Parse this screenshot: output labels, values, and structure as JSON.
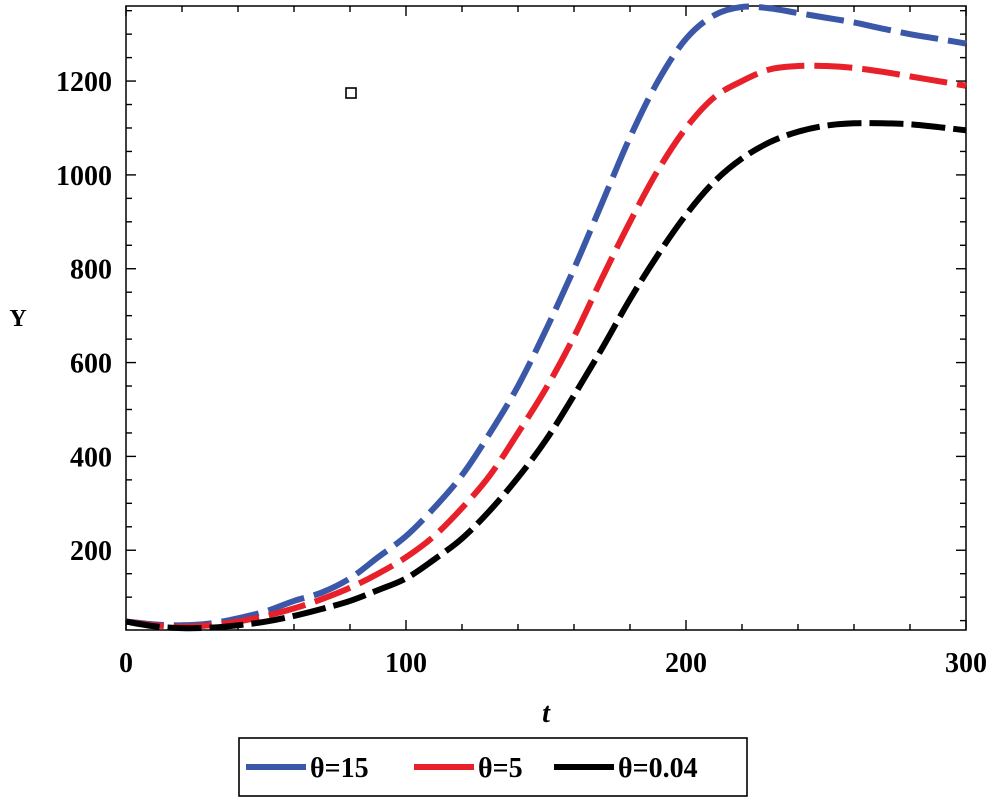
{
  "chart_data": {
    "type": "line",
    "title": "",
    "xlabel": "t",
    "ylabel": "Y",
    "xlim": [
      0,
      300
    ],
    "ylim": [
      30,
      1360
    ],
    "x_ticks": [
      0,
      100,
      200,
      300
    ],
    "y_ticks": [
      200,
      400,
      600,
      800,
      1000,
      1200
    ],
    "x_tick_labels": [
      "0",
      "100",
      "200",
      "300"
    ],
    "y_tick_labels": [
      "200",
      "400",
      "600",
      "800",
      "1000",
      "1200"
    ],
    "grid": false,
    "legend_position": "bottom",
    "series": [
      {
        "name": "θ=15",
        "color": "#3b57a8",
        "style": "dashed",
        "x": [
          0,
          10,
          20,
          30,
          40,
          50,
          60,
          70,
          80,
          90,
          100,
          110,
          120,
          130,
          140,
          150,
          160,
          170,
          180,
          190,
          200,
          210,
          220,
          230,
          240,
          250,
          260,
          270,
          280,
          290,
          300
        ],
        "y": [
          48,
          42,
          40,
          44,
          55,
          70,
          92,
          110,
          140,
          185,
          230,
          290,
          360,
          450,
          550,
          670,
          800,
          940,
          1080,
          1200,
          1290,
          1340,
          1358,
          1355,
          1345,
          1335,
          1325,
          1312,
          1300,
          1290,
          1280
        ]
      },
      {
        "name": "θ=5",
        "color": "#e8202a",
        "style": "dashed",
        "x": [
          0,
          10,
          20,
          30,
          40,
          50,
          60,
          70,
          80,
          90,
          100,
          110,
          120,
          130,
          140,
          150,
          160,
          170,
          180,
          190,
          200,
          210,
          220,
          230,
          240,
          250,
          260,
          270,
          280,
          290,
          300
        ],
        "y": [
          48,
          40,
          37,
          40,
          48,
          60,
          76,
          96,
          120,
          150,
          185,
          230,
          290,
          360,
          450,
          545,
          655,
          780,
          900,
          1010,
          1100,
          1165,
          1200,
          1225,
          1232,
          1232,
          1228,
          1220,
          1210,
          1200,
          1190
        ]
      },
      {
        "name": "θ=0.04",
        "color": "#000000",
        "style": "dashed",
        "x": [
          0,
          10,
          20,
          30,
          40,
          50,
          60,
          70,
          80,
          90,
          100,
          110,
          120,
          130,
          140,
          150,
          160,
          170,
          180,
          190,
          200,
          210,
          220,
          230,
          240,
          250,
          260,
          270,
          280,
          290,
          300
        ],
        "y": [
          48,
          38,
          34,
          35,
          40,
          48,
          60,
          75,
          92,
          115,
          140,
          180,
          225,
          285,
          355,
          435,
          530,
          630,
          735,
          830,
          915,
          985,
          1035,
          1070,
          1092,
          1105,
          1110,
          1110,
          1108,
          1102,
          1095
        ]
      }
    ]
  },
  "legend": {
    "items": [
      {
        "label": "θ=15",
        "color": "#3b57a8"
      },
      {
        "label": "θ=5",
        "color": "#e8202a"
      },
      {
        "label": "θ=0.04",
        "color": "#000000"
      }
    ]
  }
}
